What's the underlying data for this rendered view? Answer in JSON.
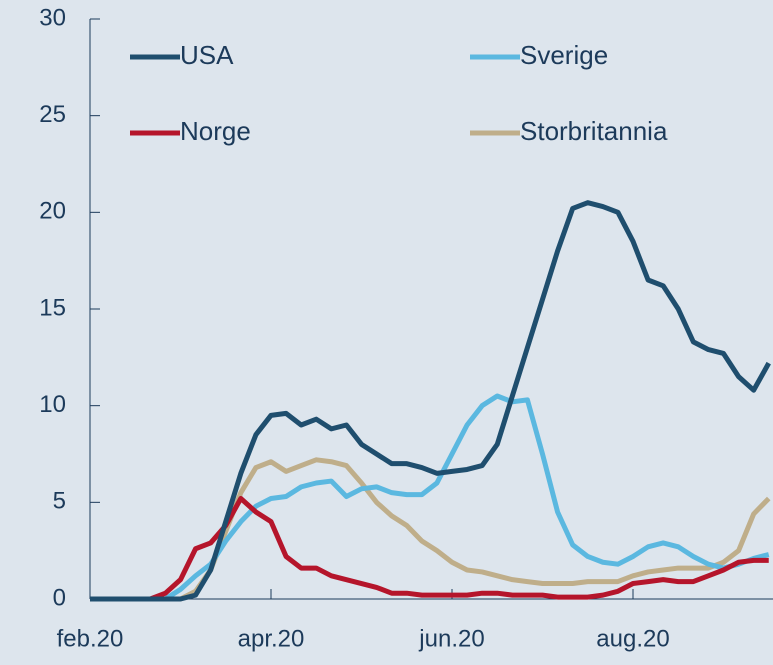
{
  "chart_data": {
    "type": "line",
    "categories": [
      "feb.20",
      null,
      null,
      null,
      null,
      null,
      null,
      null,
      null,
      null,
      null,
      null,
      "apr.20",
      null,
      null,
      null,
      null,
      null,
      null,
      null,
      null,
      null,
      null,
      null,
      "jun.20",
      null,
      null,
      null,
      null,
      null,
      null,
      null,
      null,
      null,
      null,
      null,
      "aug.20",
      null,
      null,
      null,
      null,
      null,
      null,
      null,
      null,
      null
    ],
    "series": [
      {
        "name": "USA",
        "color": "#1f4e6e",
        "values": [
          0,
          0,
          0,
          0,
          0,
          0,
          0,
          0.2,
          1.5,
          4,
          6.5,
          8.5,
          9.5,
          9.6,
          9.0,
          9.3,
          8.8,
          9.0,
          8.0,
          7.5,
          7.0,
          7.0,
          6.8,
          6.5,
          6.6,
          6.7,
          6.9,
          8.0,
          10.5,
          13,
          15.5,
          18,
          20.2,
          20.5,
          20.3,
          20.0,
          18.5,
          16.5,
          16.2,
          15,
          13.3,
          12.9,
          12.7,
          11.5,
          10.8,
          12.2
        ]
      },
      {
        "name": "Norge",
        "color": "#b5152b",
        "values": [
          0,
          0,
          0,
          0,
          0,
          0.3,
          1.0,
          2.6,
          2.9,
          3.8,
          5.2,
          4.5,
          4.0,
          2.2,
          1.6,
          1.6,
          1.2,
          1.0,
          0.8,
          0.6,
          0.3,
          0.3,
          0.2,
          0.2,
          0.2,
          0.2,
          0.3,
          0.3,
          0.2,
          0.2,
          0.2,
          0.1,
          0.1,
          0.1,
          0.2,
          0.4,
          0.8,
          0.9,
          1.0,
          0.9,
          0.9,
          1.2,
          1.5,
          1.9,
          2.0,
          2.0
        ]
      },
      {
        "name": "Sverige",
        "color": "#5bb8e0",
        "values": [
          0,
          0,
          0,
          0,
          0,
          0,
          0.5,
          1.2,
          1.8,
          3.0,
          4.0,
          4.8,
          5.2,
          5.3,
          5.8,
          6.0,
          6.1,
          5.3,
          5.7,
          5.8,
          5.5,
          5.4,
          5.4,
          6.0,
          7.5,
          9.0,
          10.0,
          10.5,
          10.2,
          10.3,
          7.5,
          4.5,
          2.8,
          2.2,
          1.9,
          1.8,
          2.2,
          2.7,
          2.9,
          2.7,
          2.2,
          1.8,
          1.6,
          1.8,
          2.1,
          2.3
        ]
      },
      {
        "name": "Storbritannia",
        "color": "#bfae8a",
        "values": [
          0,
          0,
          0,
          0,
          0,
          0,
          0,
          0.4,
          1.5,
          3.5,
          5.5,
          6.8,
          7.1,
          6.6,
          6.9,
          7.2,
          7.1,
          6.9,
          6.0,
          5.0,
          4.3,
          3.8,
          3.0,
          2.5,
          1.9,
          1.5,
          1.4,
          1.2,
          1.0,
          0.9,
          0.8,
          0.8,
          0.8,
          0.9,
          0.9,
          0.9,
          1.2,
          1.4,
          1.5,
          1.6,
          1.6,
          1.6,
          1.9,
          2.5,
          4.4,
          5.2
        ]
      }
    ],
    "ylim": [
      0,
      30
    ],
    "yticks": [
      0,
      5,
      10,
      15,
      20,
      25,
      30
    ]
  }
}
